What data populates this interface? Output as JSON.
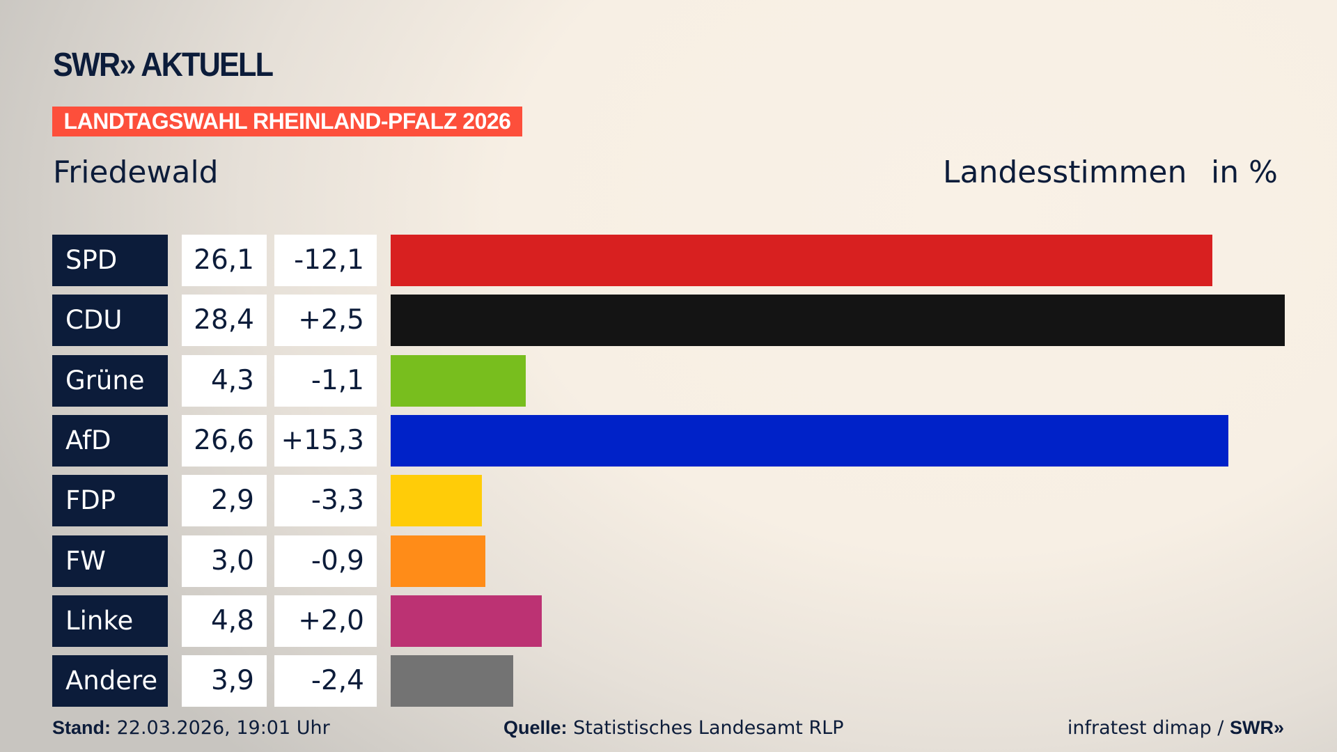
{
  "header": {
    "logo": "SWR» AKTUELL",
    "banner": "LANDTAGSWAHL RHEINLAND-PFALZ 2026",
    "location": "Friedewald",
    "measure": "Landesstimmen",
    "unit": "in %"
  },
  "chart_data": {
    "type": "bar",
    "orientation": "horizontal",
    "xlim": [
      0,
      28.4
    ],
    "categories": [
      "SPD",
      "CDU",
      "Grüne",
      "AfD",
      "FDP",
      "FW",
      "Linke",
      "Andere"
    ],
    "values": [
      "26,1",
      "28,4",
      "4,3",
      "26,6",
      "2,9",
      "3,0",
      "4,8",
      "3,9"
    ],
    "numeric_values": [
      26.1,
      28.4,
      4.3,
      26.6,
      2.9,
      3.0,
      4.8,
      3.9
    ],
    "changes": [
      "-12,1",
      "+2,5",
      "-1,1",
      "+15,3",
      "-3,3",
      "-0,9",
      "+2,0",
      "-2,4"
    ],
    "colors": [
      "#d82020",
      "#141414",
      "#78be1e",
      "#0022c8",
      "#ffcc08",
      "#ff8c18",
      "#bc3273",
      "#737373"
    ]
  },
  "footer": {
    "stand_label": "Stand:",
    "stand_value": " 22.03.2026, 19:01 Uhr",
    "source_label": "Quelle:",
    "source_value": " Statistisches Landesamt RLP",
    "credit": "infratest dimap / ",
    "credit_logo": "SWR»"
  }
}
